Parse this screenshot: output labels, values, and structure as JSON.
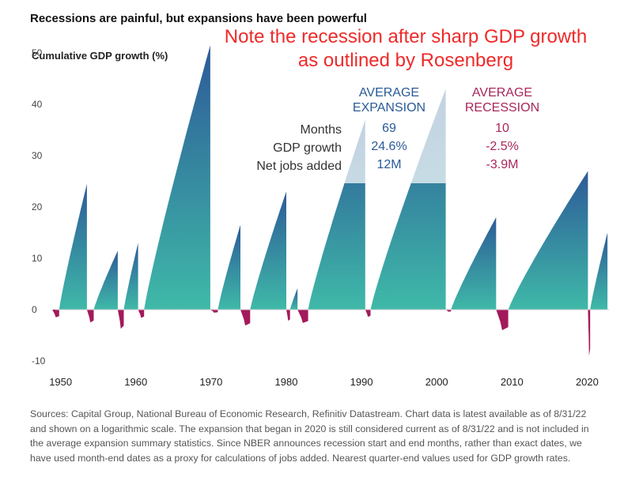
{
  "title": "Recessions are painful, but expansions have been powerful",
  "annotation": "Note the recession after sharp GDP growth as outlined by Rosenberg",
  "stats": {
    "expansion_header": [
      "AVERAGE",
      "EXPANSION"
    ],
    "recession_header": [
      "AVERAGE",
      "RECESSION"
    ],
    "rows": [
      {
        "label": "Months",
        "expansion": "69",
        "recession": "10"
      },
      {
        "label": "GDP growth",
        "expansion": "24.6%",
        "recession": "-2.5%"
      },
      {
        "label": "Net jobs added",
        "expansion": "12M",
        "recession": "-3.9M"
      }
    ]
  },
  "footnote": "Sources: Capital Group, National Bureau of Economic Research, Refinitiv Datastream. Chart data is latest available as of 8/31/22 and shown on a logarithmic scale. The expansion that began in 2020 is still considered current as of 8/31/22 and is not included in the average expansion summary statistics. Since NBER announces recession start and end months, rather than exact dates, we have used month-end dates as a proxy for calculations of jobs added. Nearest quarter-end values used for GDP growth rates.",
  "colors": {
    "expansion_top": "#2d5a98",
    "expansion_bottom": "#3fb9a8",
    "recession": "#a3195b",
    "annotation": "#ee2a2a"
  },
  "chart_data": {
    "type": "area",
    "ylabel": "Cumulative GDP growth (%)",
    "yticks": [
      50,
      40,
      30,
      20,
      10,
      0,
      -10
    ],
    "xticks": [
      1950,
      1960,
      1970,
      1980,
      1990,
      2000,
      2010,
      2020
    ],
    "xlim": [
      1949.3,
      2022.9
    ],
    "ylim": [
      -10,
      52
    ],
    "scale": "logarithmic",
    "expansions": [
      {
        "start": 1949.8,
        "end": 1953.5,
        "peak": 24.5
      },
      {
        "start": 1954.4,
        "end": 1957.6,
        "peak": 11.5
      },
      {
        "start": 1958.4,
        "end": 1960.3,
        "peak": 13.0
      },
      {
        "start": 1961.1,
        "end": 1969.9,
        "peak": 51.5
      },
      {
        "start": 1970.9,
        "end": 1973.9,
        "peak": 16.5
      },
      {
        "start": 1975.2,
        "end": 1980.0,
        "peak": 23.0
      },
      {
        "start": 1980.5,
        "end": 1981.5,
        "peak": 4.2
      },
      {
        "start": 1982.9,
        "end": 1990.5,
        "peak": 37.0
      },
      {
        "start": 1991.2,
        "end": 2001.2,
        "peak": 43.0
      },
      {
        "start": 2001.9,
        "end": 2007.9,
        "peak": 18.0
      },
      {
        "start": 2009.5,
        "end": 2020.1,
        "peak": 27.0
      },
      {
        "start": 2020.4,
        "end": 2022.7,
        "peak": 15.0
      }
    ],
    "recessions": [
      {
        "start": 1948.9,
        "end": 1949.8,
        "trough": -1.5
      },
      {
        "start": 1953.5,
        "end": 1954.4,
        "trough": -2.5
      },
      {
        "start": 1957.6,
        "end": 1958.4,
        "trough": -3.7
      },
      {
        "start": 1960.3,
        "end": 1961.1,
        "trough": -1.6
      },
      {
        "start": 1969.9,
        "end": 1970.9,
        "trough": -0.6
      },
      {
        "start": 1973.9,
        "end": 1975.2,
        "trough": -3.1
      },
      {
        "start": 1980.0,
        "end": 1980.5,
        "trough": -2.2
      },
      {
        "start": 1981.5,
        "end": 1982.9,
        "trough": -2.6
      },
      {
        "start": 1990.5,
        "end": 1991.2,
        "trough": -1.4
      },
      {
        "start": 2001.2,
        "end": 2001.9,
        "trough": -0.4
      },
      {
        "start": 2007.9,
        "end": 2009.5,
        "trough": -4.0
      },
      {
        "start": 2020.1,
        "end": 2020.4,
        "trough": -9.0
      }
    ]
  }
}
